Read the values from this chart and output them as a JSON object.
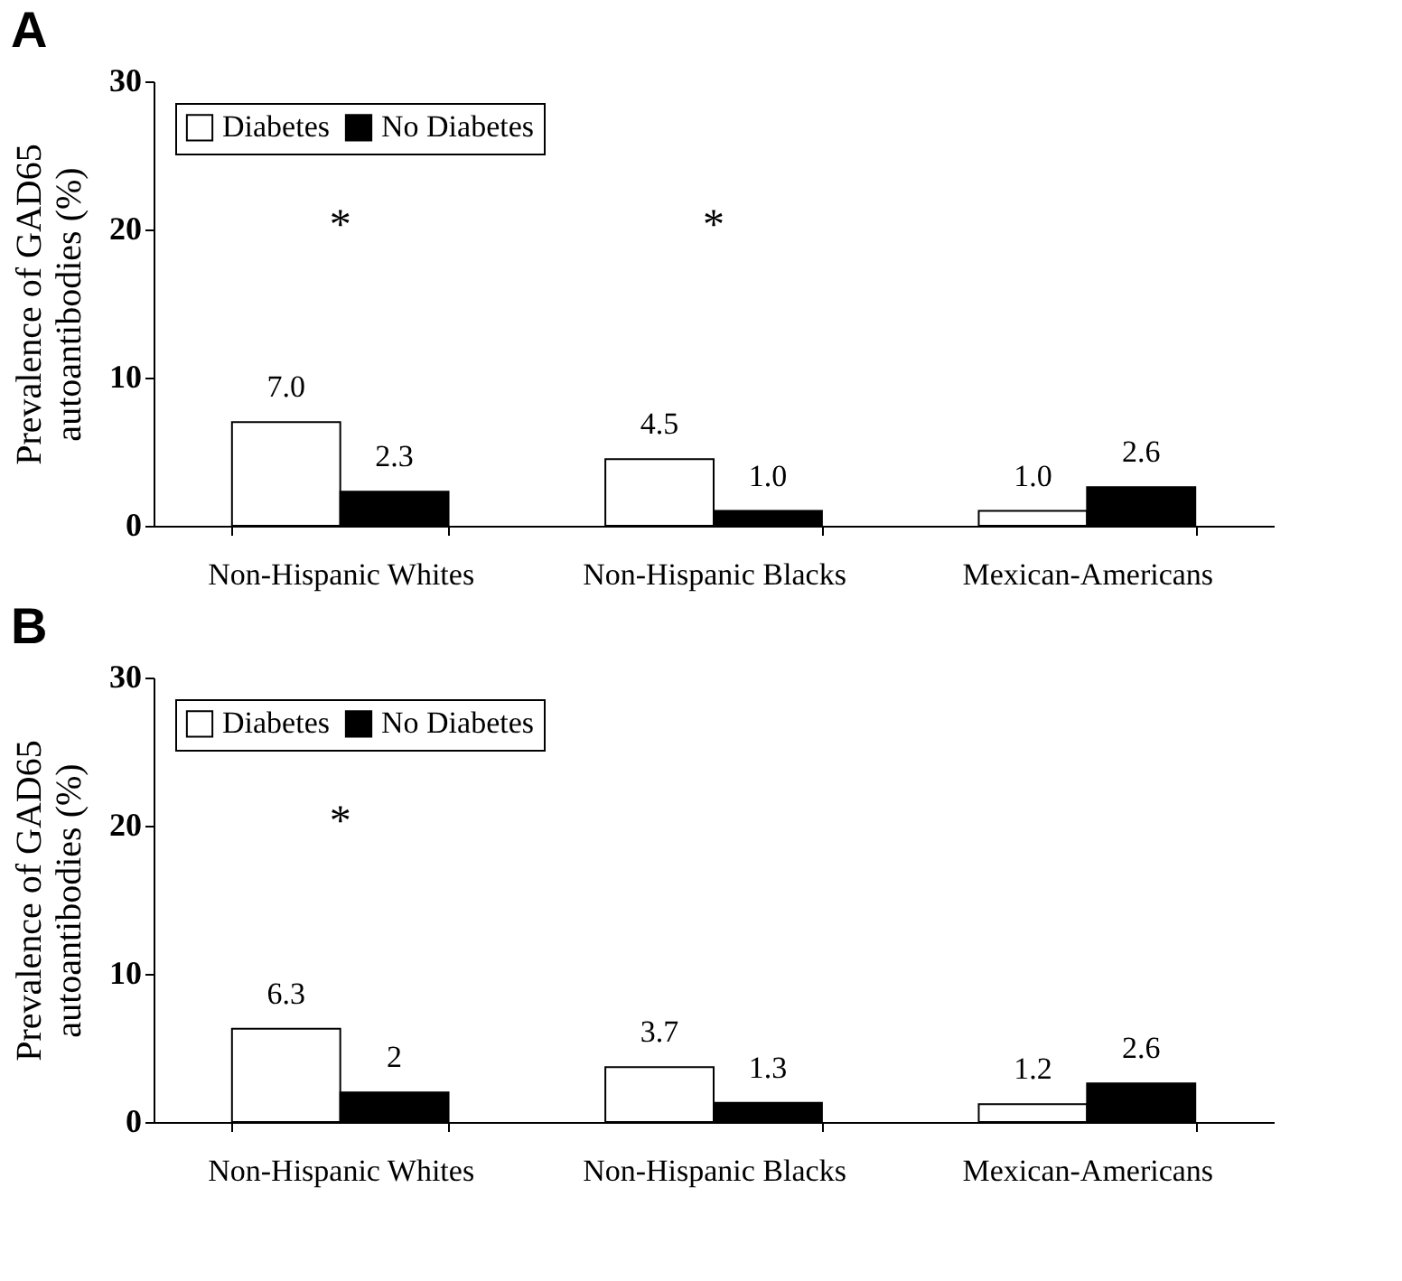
{
  "chart_data": [
    {
      "type": "bar",
      "title": "A",
      "ylabel": "Prevalence of GAD65 autoantibodies (%)",
      "categories": [
        "Non-Hispanic Whites",
        "Non-Hispanic Blacks",
        "Mexican-Americans"
      ],
      "series": [
        {
          "name": "Diabetes",
          "color": "#ffffff",
          "values": [
            7.0,
            4.5,
            1.0
          ],
          "value_labels": [
            "7.0",
            "4.5",
            "1.0"
          ]
        },
        {
          "name": "No Diabetes",
          "color": "#000000",
          "values": [
            2.3,
            1.0,
            2.6
          ],
          "value_labels": [
            "2.3",
            "1.0",
            "2.6"
          ]
        }
      ],
      "ylim": [
        0,
        30
      ],
      "yticks": [
        0,
        10,
        20,
        30
      ],
      "grid": false,
      "legend": "top left",
      "annotations": [
        "*",
        "*"
      ]
    },
    {
      "type": "bar",
      "title": "B",
      "ylabel": "Prevalence of GAD65 autoantibodies (%)",
      "categories": [
        "Non-Hispanic Whites",
        "Non-Hispanic Blacks",
        "Mexican-Americans"
      ],
      "series": [
        {
          "name": "Diabetes",
          "color": "#ffffff",
          "values": [
            6.3,
            3.7,
            1.2
          ],
          "value_labels": [
            "6.3",
            "3.7",
            "1.2"
          ]
        },
        {
          "name": "No Diabetes",
          "color": "#000000",
          "values": [
            2.0,
            1.3,
            2.6
          ],
          "value_labels": [
            "2",
            "1.3",
            "2.6"
          ]
        }
      ],
      "ylim": [
        0,
        30
      ],
      "yticks": [
        0,
        10,
        20,
        30
      ],
      "grid": false,
      "legend": "top left",
      "annotations": [
        "*"
      ]
    }
  ]
}
